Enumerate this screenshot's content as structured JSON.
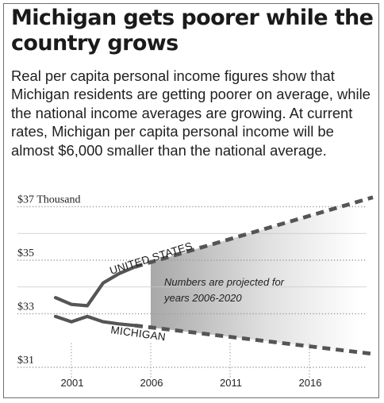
{
  "title": "Michigan gets poorer while the country grows",
  "subtitle": "Real per capita personal income figures show that Michigan residents are getting poorer on average, while the national income averages are growing. At current rates, Michigan per capita personal income will be almost $6,000 smaller than the national average.",
  "chart_data": {
    "type": "line",
    "y_tick_labels": [
      "$37 Thousand",
      "$35",
      "$33",
      "$31"
    ],
    "y_tick_values": [
      37,
      35,
      33,
      31
    ],
    "x_tick_labels": [
      "2001",
      "2006",
      "2011",
      "2016"
    ],
    "x_tick_values": [
      2001,
      2006,
      2011,
      2016
    ],
    "xlim": [
      1999,
      2021
    ],
    "ylim": [
      31,
      37.2
    ],
    "grid": true,
    "projection_start": 2006,
    "annotation": "Numbers are projected for years 2006-2020",
    "series": [
      {
        "name": "UNITED STATES",
        "color": "#555555",
        "points": [
          {
            "x": 2000,
            "y": 33.6
          },
          {
            "x": 2001,
            "y": 33.35
          },
          {
            "x": 2002,
            "y": 33.3
          },
          {
            "x": 2003,
            "y": 34.15
          },
          {
            "x": 2004,
            "y": 34.5
          },
          {
            "x": 2005,
            "y": 34.75
          }
        ],
        "projected": [
          {
            "x": 2005,
            "y": 34.75
          },
          {
            "x": 2020,
            "y": 37.35
          }
        ]
      },
      {
        "name": "MICHIGAN",
        "color": "#555555",
        "points": [
          {
            "x": 2000,
            "y": 32.9
          },
          {
            "x": 2001,
            "y": 32.7
          },
          {
            "x": 2002,
            "y": 32.9
          },
          {
            "x": 2003,
            "y": 32.7
          },
          {
            "x": 2004,
            "y": 32.62
          },
          {
            "x": 2005,
            "y": 32.56
          }
        ],
        "projected": [
          {
            "x": 2005,
            "y": 32.56
          },
          {
            "x": 2020,
            "y": 31.5
          }
        ]
      }
    ]
  }
}
